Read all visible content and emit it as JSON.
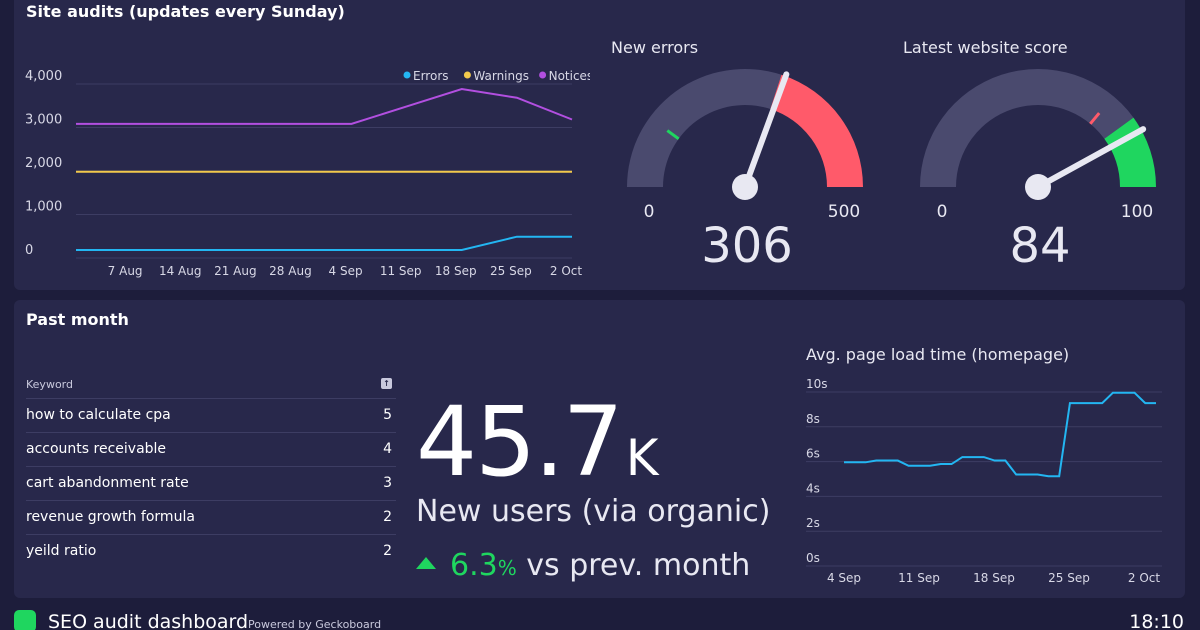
{
  "site_audits": {
    "title": "Site audits (updates every Sunday)",
    "chart_data": {
      "type": "line",
      "categories": [
        "",
        "7 Aug",
        "14 Aug",
        "21 Aug",
        "28 Aug",
        "4 Sep",
        "11 Sep",
        "18 Sep",
        "25 Sep",
        "2 Oct"
      ],
      "series": [
        {
          "name": "Errors",
          "color": "#23b6f2",
          "values": [
            0,
            0,
            0,
            0,
            0,
            0,
            0,
            0,
            306,
            306
          ]
        },
        {
          "name": "Warnings",
          "color": "#f2c94c",
          "values": [
            1800,
            1800,
            1800,
            1800,
            1800,
            1800,
            1800,
            1800,
            1800,
            1800
          ]
        },
        {
          "name": "Notices",
          "color": "#b24fe0",
          "values": [
            2900,
            2900,
            2900,
            2900,
            2900,
            2900,
            3300,
            3700,
            3500,
            3000
          ]
        }
      ],
      "yticks": [
        "4,000",
        "3,000",
        "2,000",
        "1,000",
        "0"
      ],
      "ylim": [
        0,
        4000
      ]
    }
  },
  "new_errors": {
    "title": "New errors",
    "value": "306",
    "value_num": 306,
    "min": "0",
    "max": "500",
    "max_num": 500,
    "green_threshold": 100,
    "red_start": 300,
    "red_color": "#ff5a6a",
    "green_color": "#1fd65f"
  },
  "website_score": {
    "title": "Latest website score",
    "value": "84",
    "value_num": 84,
    "min": "0",
    "max": "100",
    "max_num": 100,
    "red_threshold": 72,
    "green_start": 80,
    "red_color": "#ff5a6a",
    "green_color": "#1fd65f"
  },
  "past_month": {
    "title": "Past month",
    "keywords": {
      "header": "Keyword",
      "rows": [
        {
          "keyword": "how to calculate cpa",
          "count": "5"
        },
        {
          "keyword": "accounts receivable",
          "count": "4"
        },
        {
          "keyword": "cart abandonment rate",
          "count": "3"
        },
        {
          "keyword": "revenue growth formula",
          "count": "2"
        },
        {
          "keyword": "yeild ratio",
          "count": "2"
        }
      ]
    },
    "new_users": {
      "value": "45.7",
      "suffix": "K",
      "label": "New users (via organic)",
      "delta_value": "6.3",
      "delta_unit": "%",
      "delta_text": " vs prev. month"
    },
    "page_load": {
      "title": "Avg. page load time (homepage)",
      "chart_data": {
        "type": "line",
        "color": "#23b6f2",
        "x_labels": [
          "4 Sep",
          "11 Sep",
          "18 Sep",
          "25 Sep",
          "2 Oct"
        ],
        "yticks": [
          "10s",
          "8s",
          "6s",
          "4s",
          "2s",
          "0s"
        ],
        "ylim": [
          0,
          10
        ],
        "values": [
          5.5,
          5.5,
          5.5,
          5.6,
          5.6,
          5.6,
          5.3,
          5.3,
          5.3,
          5.4,
          5.4,
          5.8,
          5.8,
          5.8,
          5.6,
          5.6,
          4.8,
          4.8,
          4.8,
          4.7,
          4.7,
          8.9,
          8.9,
          8.9,
          8.9,
          9.5,
          9.5,
          9.5,
          8.9,
          8.9
        ]
      }
    }
  },
  "footer": {
    "title": "SEO audit dashboard",
    "powered": "Powered by Geckoboard",
    "time": "18:10"
  }
}
